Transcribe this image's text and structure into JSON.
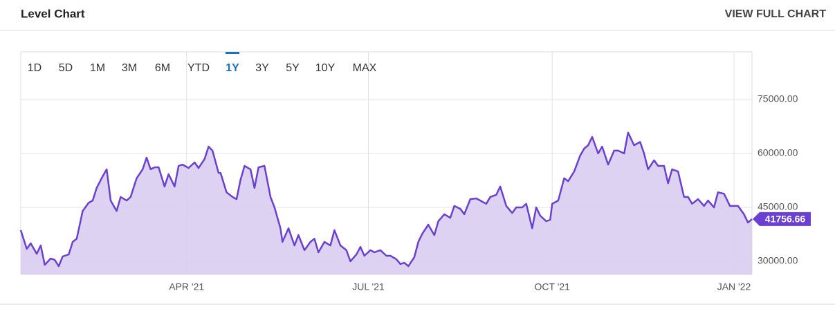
{
  "header": {
    "title": "Level Chart",
    "link": "VIEW FULL CHART"
  },
  "range_buttons": [
    "1D",
    "5D",
    "1M",
    "3M",
    "6M",
    "YTD",
    "1Y",
    "3Y",
    "5Y",
    "10Y",
    "MAX"
  ],
  "selected_range": "1Y",
  "chart_data": {
    "type": "area",
    "color": "#6a3fd3",
    "fill": "#d9cdf0",
    "grid": true,
    "series": [
      {
        "x": [
          0,
          3,
          5,
          8,
          10,
          12,
          15,
          17,
          19,
          21,
          24,
          26,
          28,
          31,
          34,
          36,
          38,
          41,
          43,
          45,
          48,
          50,
          53,
          55,
          58,
          61,
          63,
          65,
          67,
          69,
          72,
          74,
          77,
          79,
          81,
          84,
          87,
          89,
          92,
          94,
          96,
          99,
          100,
          103,
          106,
          108,
          110,
          112,
          115,
          117,
          119,
          122,
          125,
          127,
          130,
          131,
          134,
          137,
          139,
          142,
          145,
          147,
          149,
          152,
          155,
          157,
          160,
          163,
          165,
          168,
          170,
          172,
          175,
          177,
          180,
          183,
          185,
          188,
          190,
          192,
          194,
          197,
          199,
          201,
          204,
          207,
          209,
          212,
          215,
          217,
          220,
          222,
          225,
          228,
          230,
          233,
          235,
          238,
          240,
          243,
          246,
          248,
          251,
          253,
          256,
          258,
          260,
          263,
          265,
          266,
          269,
          272,
          274,
          277,
          280,
          282,
          284,
          286,
          289,
          291,
          294,
          297,
          299,
          302,
          304,
          307,
          310,
          312,
          314,
          317,
          319,
          322,
          324,
          326,
          329,
          332,
          334,
          336,
          339,
          342,
          344,
          347,
          349,
          352,
          355,
          357,
          359,
          362,
          364,
          366
        ],
        "values": [
          38650,
          33460,
          35000,
          32100,
          34400,
          29000,
          30800,
          30400,
          28650,
          31350,
          31900,
          35400,
          36300,
          44000,
          46300,
          46900,
          50400,
          53650,
          55600,
          46900,
          44000,
          47900,
          46900,
          47900,
          53100,
          55600,
          58850,
          55600,
          56150,
          56150,
          50800,
          54250,
          50800,
          56550,
          56900,
          55960,
          57500,
          55960,
          58450,
          61900,
          60800,
          54600,
          54600,
          49200,
          47900,
          47300,
          52700,
          56550,
          55600,
          50400,
          56150,
          56550,
          47900,
          45000,
          39200,
          35400,
          39200,
          34400,
          37300,
          33100,
          35400,
          36300,
          32500,
          35400,
          34400,
          38650,
          34400,
          33100,
          30000,
          31900,
          34000,
          31550,
          33100,
          32500,
          33100,
          31550,
          31550,
          30600,
          29250,
          29600,
          28650,
          31150,
          35400,
          37700,
          40200,
          37300,
          41150,
          43100,
          42100,
          45400,
          44600,
          43100,
          47300,
          47500,
          46900,
          46000,
          47900,
          48500,
          50800,
          45400,
          43450,
          45000,
          45000,
          46000,
          39200,
          45000,
          42700,
          41150,
          41550,
          46000,
          46900,
          53100,
          52300,
          55000,
          59400,
          61350,
          62300,
          64600,
          60000,
          61900,
          56900,
          60800,
          60800,
          60000,
          65800,
          62300,
          63200,
          60000,
          55600,
          58100,
          56550,
          56550,
          51700,
          55600,
          55000,
          47900,
          47900,
          46000,
          47300,
          45400,
          46900,
          45000,
          49200,
          48800,
          45400,
          45400,
          45400,
          43100,
          40800,
          41756.66
        ]
      }
    ],
    "xlim": [
      0,
      366
    ],
    "xticks": [
      {
        "value": 83,
        "label": "APR '21"
      },
      {
        "value": 174,
        "label": "JUL '21"
      },
      {
        "value": 266,
        "label": "OCT '21"
      },
      {
        "value": 357,
        "label": "JAN '22"
      }
    ],
    "ylim": [
      26350,
      88270
    ],
    "yticks": [
      {
        "value": 30000,
        "label": "30000.00"
      },
      {
        "value": 45000,
        "label": "45000.00"
      },
      {
        "value": 60000,
        "label": "60000.00"
      },
      {
        "value": 75000,
        "label": "75000.00"
      }
    ]
  }
}
